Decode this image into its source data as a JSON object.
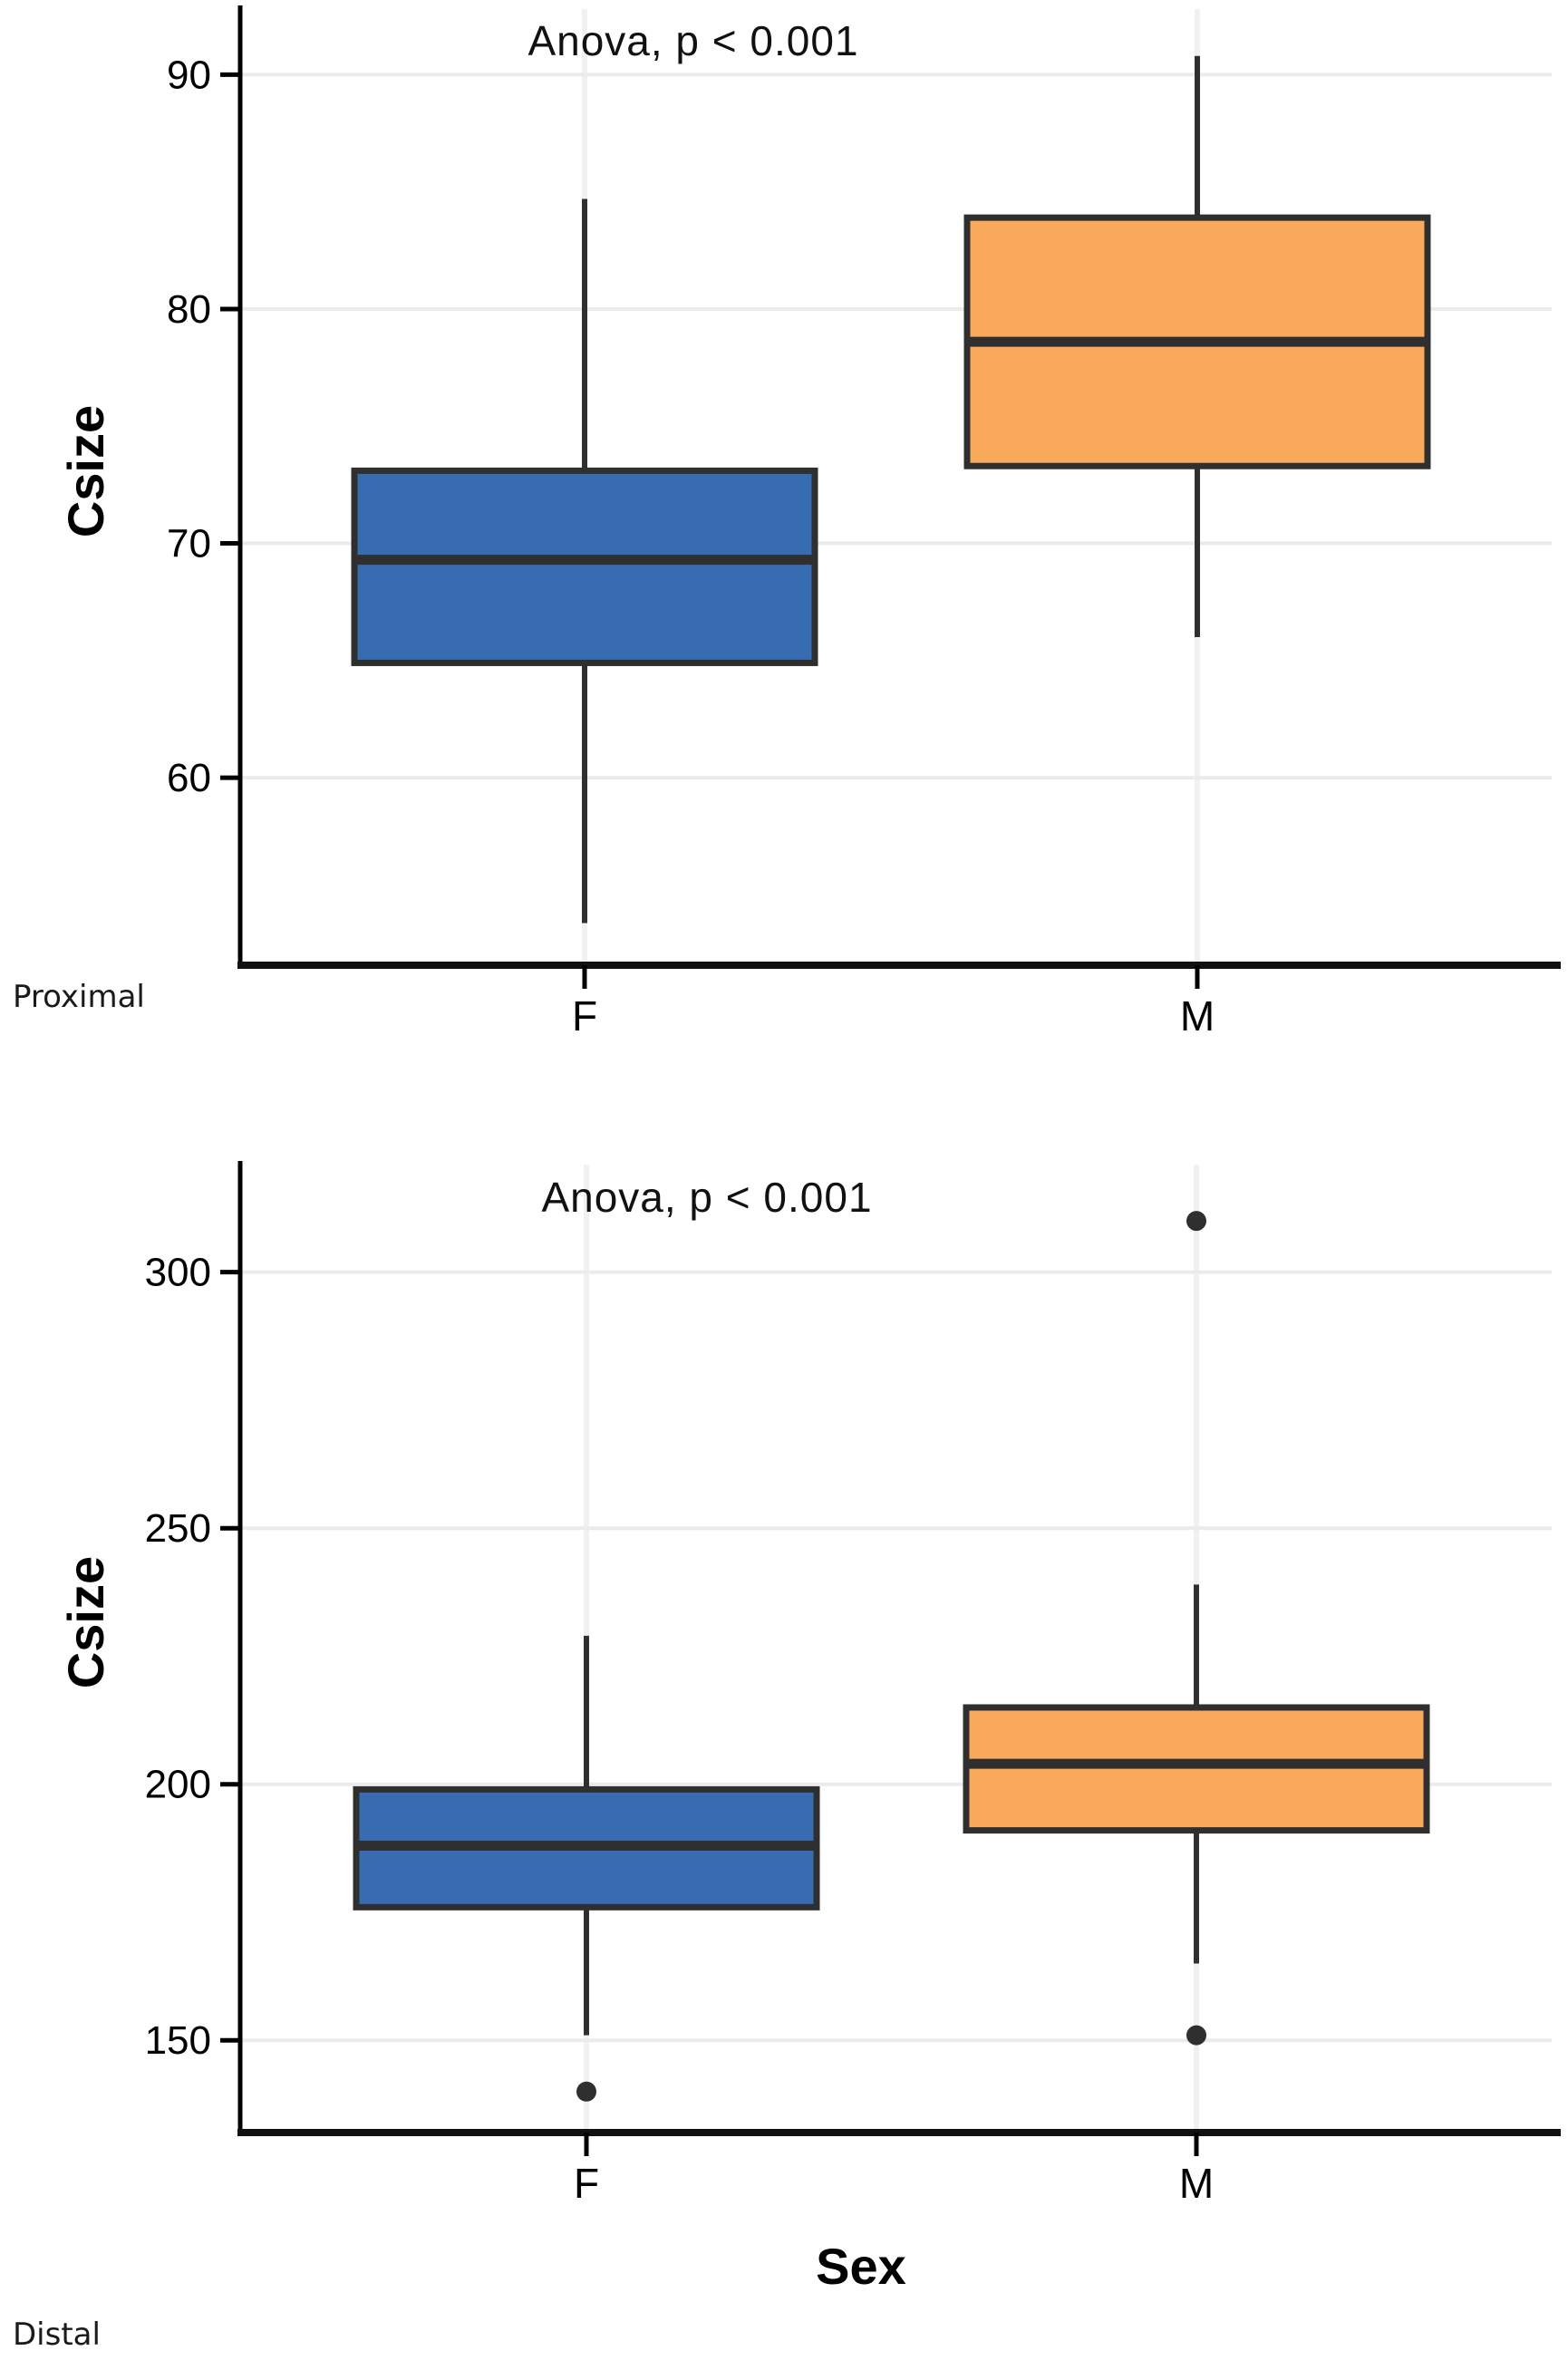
{
  "figure": {
    "background": "#ffffff",
    "accent_colors": {
      "female_box": "#376CB0",
      "male_box": "#F9A95C",
      "box_stroke": "#2F2F2F",
      "grid_line": "#EBEBEB",
      "axis_line": "#000000"
    }
  },
  "chart_data": [
    {
      "type": "box",
      "panel_label": "Proximal",
      "title": "Anova, p < 0.001",
      "xlabel": "",
      "ylabel": "Csize",
      "categories": [
        "F",
        "M"
      ],
      "yticks": [
        60,
        70,
        80,
        90
      ],
      "ylim": [
        52,
        92.8
      ],
      "grid": true,
      "legend": "none",
      "series": [
        {
          "name": "F",
          "color": "#376CB0",
          "whisker_min": 53.8,
          "q1": 64.9,
          "median": 69.3,
          "q3": 73.1,
          "whisker_max": 84.7,
          "outliers": []
        },
        {
          "name": "M",
          "color": "#F9A95C",
          "whisker_min": 66.0,
          "q1": 73.3,
          "median": 78.6,
          "q3": 83.9,
          "whisker_max": 90.8,
          "outliers": []
        }
      ]
    },
    {
      "type": "box",
      "panel_label": "Distal",
      "title": "Anova, p < 0.001",
      "xlabel": "Sex",
      "ylabel": "Csize",
      "categories": [
        "F",
        "M"
      ],
      "yticks": [
        150,
        200,
        250,
        300
      ],
      "ylim": [
        132,
        321
      ],
      "grid": true,
      "legend": "none",
      "series": [
        {
          "name": "F",
          "color": "#376CB0",
          "whisker_min": 151,
          "q1": 176,
          "median": 188,
          "q3": 199,
          "whisker_max": 229,
          "outliers": [
            140
          ]
        },
        {
          "name": "M",
          "color": "#F9A95C",
          "whisker_min": 165,
          "q1": 191,
          "median": 204,
          "q3": 215,
          "whisker_max": 239,
          "outliers": [
            151,
            310
          ]
        }
      ]
    }
  ]
}
